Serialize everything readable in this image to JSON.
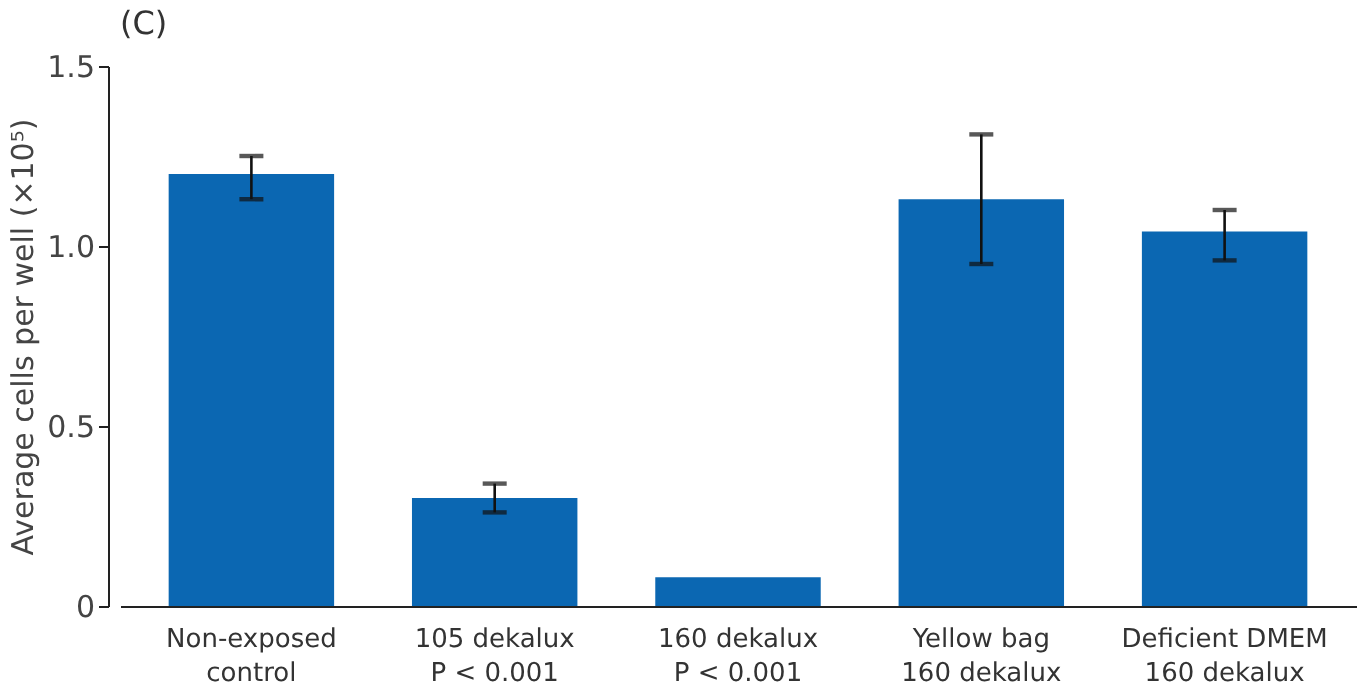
{
  "chart_data": {
    "type": "bar",
    "title": "(C)",
    "ylabel": "Average cells per well (×10⁵)",
    "categories": [
      "Non-exposed\ncontrol",
      "105 dekalux\nP < 0.001",
      "160 dekalux\nP < 0.001",
      "Yellow bag\n160 dekalux",
      "Deficient DMEM\n160 dekalux"
    ],
    "values": [
      1.2,
      0.3,
      0.08,
      1.13,
      1.04
    ],
    "errors": [
      [
        1.13,
        1.25
      ],
      [
        0.26,
        0.34
      ],
      null,
      [
        0.95,
        1.31
      ],
      [
        0.96,
        1.1
      ]
    ],
    "color": "#0b67b2",
    "ylim": [
      0,
      1.5
    ],
    "yticks": [
      0,
      {
        "value": 0.5,
        "label": "0.5"
      },
      {
        "value": 1,
        "label": "1.0"
      },
      {
        "value": 1.5,
        "label": "1.5"
      }
    ],
    "grid": false
  }
}
